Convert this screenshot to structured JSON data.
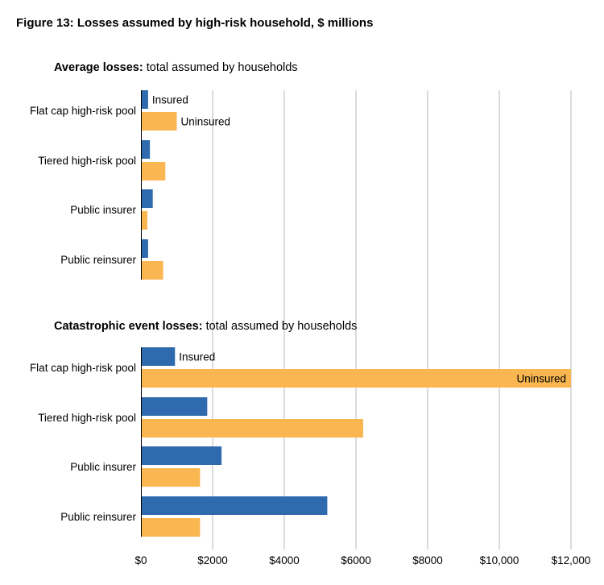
{
  "figure_title": "Figure 13: Losses assumed by high-risk household, $ millions",
  "colors": {
    "insured": "#2e6aad",
    "uninsured": "#fab751",
    "grid": "#c8c8c8"
  },
  "chart_data": [
    {
      "type": "bar",
      "orientation": "horizontal",
      "title_bold": "Average losses:",
      "title_rest": " total assumed by households",
      "categories": [
        "Flat cap high-risk pool",
        "Tiered high-risk pool",
        "Public insurer",
        "Public reinsurer"
      ],
      "series": [
        {
          "name": "Insured",
          "values": [
            200,
            250,
            330,
            200
          ]
        },
        {
          "name": "Uninsured",
          "values": [
            1000,
            680,
            180,
            620
          ]
        }
      ],
      "bar_labels": [
        {
          "category": "Flat cap high-risk pool",
          "series": "Insured",
          "text": "Insured"
        },
        {
          "category": "Flat cap high-risk pool",
          "series": "Uninsured",
          "text": "Uninsured"
        }
      ],
      "xlim": [
        0,
        12000
      ]
    },
    {
      "type": "bar",
      "orientation": "horizontal",
      "title_bold": "Catastrophic event losses:",
      "title_rest": " total assumed by households",
      "categories": [
        "Flat cap high-risk pool",
        "Tiered high-risk pool",
        "Public insurer",
        "Public reinsurer"
      ],
      "series": [
        {
          "name": "Insured",
          "values": [
            950,
            1850,
            2250,
            5200
          ]
        },
        {
          "name": "Uninsured",
          "values": [
            12000,
            6200,
            1650,
            1650
          ]
        }
      ],
      "bar_labels": [
        {
          "category": "Flat cap high-risk pool",
          "series": "Insured",
          "text": "Insured"
        },
        {
          "category": "Flat cap high-risk pool",
          "series": "Uninsured",
          "text": "Uninsured"
        }
      ],
      "xlim": [
        0,
        12000
      ]
    }
  ],
  "x_axis": {
    "ticks": [
      0,
      2000,
      4000,
      6000,
      8000,
      10000,
      12000
    ],
    "tick_labels": [
      "$0",
      "$2000",
      "$4000",
      "$6000",
      "$8000",
      "$10,000",
      "$12,000"
    ]
  }
}
